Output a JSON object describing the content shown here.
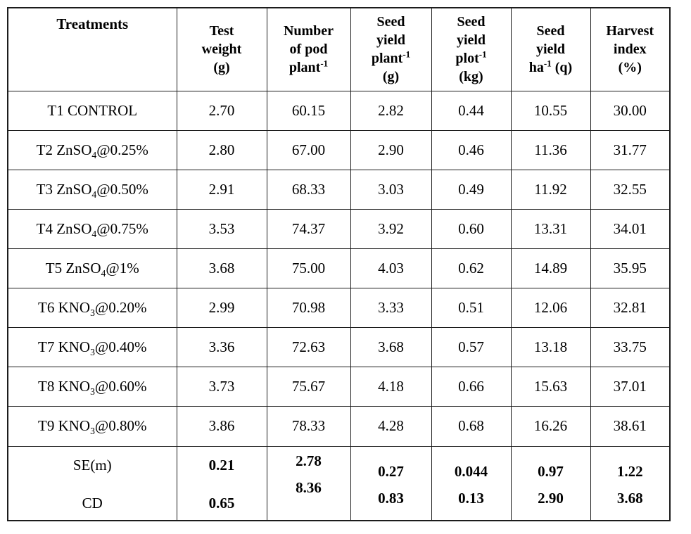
{
  "page": {
    "background_color": "#ffffff",
    "border_color": "#1c1c1c",
    "text_color": "#000000"
  },
  "table": {
    "columns": [
      "Treatments",
      "Test\nweight\n(g)",
      "Number\nof pod\nplant^{-1}",
      "Seed\nyield\nplant^{-1}\n(g)",
      "Seed\nyield\nplot^{-1}\n(kg)",
      "Seed\nyield\nha^{-1} (q)",
      "Harvest\nindex\n(%)"
    ],
    "rows": [
      {
        "treatment": "T1 CONTROL",
        "values": [
          "2.70",
          "60.15",
          "2.82",
          "0.44",
          "10.55",
          "30.00"
        ]
      },
      {
        "treatment": "T2 ZnSO_{4}@0.25%",
        "values": [
          "2.80",
          "67.00",
          "2.90",
          "0.46",
          "11.36",
          "31.77"
        ]
      },
      {
        "treatment": "T3 ZnSO_{4}@0.50%",
        "values": [
          "2.91",
          "68.33",
          "3.03",
          "0.49",
          "11.92",
          "32.55"
        ]
      },
      {
        "treatment": "T4 ZnSO_{4}@0.75%",
        "values": [
          "3.53",
          "74.37",
          "3.92",
          "0.60",
          "13.31",
          "34.01"
        ]
      },
      {
        "treatment": "T5 ZnSO_{4}@1%",
        "values": [
          "3.68",
          "75.00",
          "4.03",
          "0.62",
          "14.89",
          "35.95"
        ]
      },
      {
        "treatment": "T6 KNO_{3}@0.20%",
        "values": [
          "2.99",
          "70.98",
          "3.33",
          "0.51",
          "12.06",
          "32.81"
        ]
      },
      {
        "treatment": "T7 KNO_{3}@0.40%",
        "values": [
          "3.36",
          "72.63",
          "3.68",
          "0.57",
          "13.18",
          "33.75"
        ]
      },
      {
        "treatment": "T8 KNO_{3}@0.60%",
        "values": [
          "3.73",
          "75.67",
          "4.18",
          "0.66",
          "15.63",
          "37.01"
        ]
      },
      {
        "treatment": "T9 KNO_{3}@0.80%",
        "values": [
          "3.86",
          "78.33",
          "4.28",
          "0.68",
          "16.26",
          "38.61"
        ]
      }
    ],
    "footer": {
      "labels": [
        "SE(m)",
        "CD"
      ],
      "values": [
        [
          "0.21",
          "0.65"
        ],
        [
          "2.78",
          "8.36"
        ],
        [
          "0.27",
          "0.83"
        ],
        [
          "0.044",
          "0.13"
        ],
        [
          "0.97",
          "2.90"
        ],
        [
          "1.22",
          "3.68"
        ]
      ]
    }
  }
}
